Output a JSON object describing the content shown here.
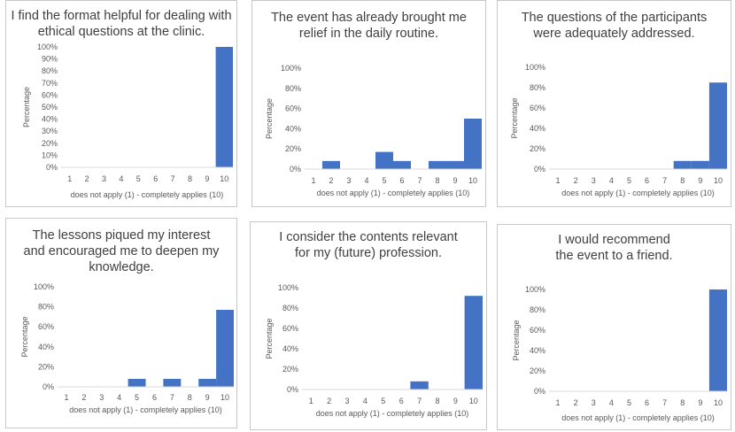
{
  "chart_data": [
    {
      "type": "bar",
      "title": "I find the format helpful for dealing with\nethical questions at the clinic.",
      "xlabel": "does not apply (1) - completely applies (10)",
      "ylabel": "Percentage",
      "categories": [
        "1",
        "2",
        "3",
        "4",
        "5",
        "6",
        "7",
        "8",
        "9",
        "10"
      ],
      "values": [
        0,
        0,
        0,
        0,
        0,
        0,
        0,
        0,
        0,
        100
      ],
      "ylim": [
        0,
        100
      ],
      "yticks": [
        "0%",
        "10%",
        "20%",
        "30%",
        "40%",
        "50%",
        "60%",
        "70%",
        "80%",
        "90%",
        "100%"
      ],
      "color": "#4472c4"
    },
    {
      "type": "bar",
      "title": "The event has already brought me\nrelief in the daily routine.",
      "xlabel": "does not apply (1) - completely applies (10)",
      "ylabel": "Percentage",
      "categories": [
        "1",
        "2",
        "3",
        "4",
        "5",
        "6",
        "7",
        "8",
        "9",
        "10"
      ],
      "values": [
        0,
        8,
        0,
        0,
        17,
        8,
        0,
        8,
        8,
        50
      ],
      "ylim": [
        0,
        100
      ],
      "yticks": [
        "0%",
        "20%",
        "40%",
        "60%",
        "80%",
        "100%"
      ],
      "color": "#4472c4"
    },
    {
      "type": "bar",
      "title": "The questions of the participants\nwere adequately addressed.",
      "xlabel": "does not apply (1) - completely applies (10)",
      "ylabel": "Percentage",
      "categories": [
        "1",
        "2",
        "3",
        "4",
        "5",
        "6",
        "7",
        "8",
        "9",
        "10"
      ],
      "values": [
        0,
        0,
        0,
        0,
        0,
        0,
        0,
        8,
        8,
        85
      ],
      "ylim": [
        0,
        100
      ],
      "yticks": [
        "0%",
        "20%",
        "40%",
        "60%",
        "80%",
        "100%"
      ],
      "color": "#4472c4"
    },
    {
      "type": "bar",
      "title": "The lessons piqued my interest\nand encouraged me to deepen my\nknowledge.",
      "xlabel": "does not apply (1) - completely applies (10)",
      "ylabel": "Percentage",
      "categories": [
        "1",
        "2",
        "3",
        "4",
        "5",
        "6",
        "7",
        "8",
        "9",
        "10"
      ],
      "values": [
        0,
        0,
        0,
        0,
        8,
        0,
        8,
        0,
        8,
        77
      ],
      "ylim": [
        0,
        100
      ],
      "yticks": [
        "0%",
        "20%",
        "40%",
        "60%",
        "80%",
        "100%"
      ],
      "color": "#4472c4"
    },
    {
      "type": "bar",
      "title": "I consider the contents relevant\nfor my (future) profession.",
      "xlabel": "does not apply (1) - completely applies (10)",
      "ylabel": "Percentage",
      "categories": [
        "1",
        "2",
        "3",
        "4",
        "5",
        "6",
        "7",
        "8",
        "9",
        "10"
      ],
      "values": [
        0,
        0,
        0,
        0,
        0,
        0,
        8,
        0,
        0,
        92
      ],
      "ylim": [
        0,
        100
      ],
      "yticks": [
        "0%",
        "20%",
        "40%",
        "60%",
        "80%",
        "100%"
      ],
      "color": "#4472c4"
    },
    {
      "type": "bar",
      "title": "I would recommend\nthe event to a friend.",
      "xlabel": "does not apply (1) - completely applies (10)",
      "ylabel": "Percentage",
      "categories": [
        "1",
        "2",
        "3",
        "4",
        "5",
        "6",
        "7",
        "8",
        "9",
        "10"
      ],
      "values": [
        0,
        0,
        0,
        0,
        0,
        0,
        0,
        0,
        0,
        100
      ],
      "ylim": [
        0,
        100
      ],
      "yticks": [
        "0%",
        "20%",
        "40%",
        "60%",
        "80%",
        "100%"
      ],
      "color": "#4472c4"
    }
  ]
}
